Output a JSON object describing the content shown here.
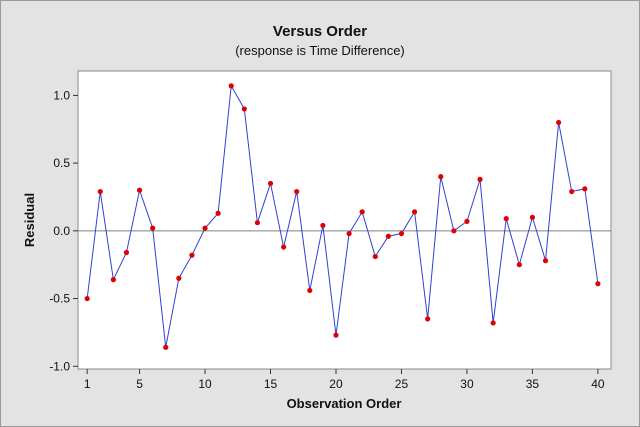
{
  "chart_data": {
    "type": "line",
    "title": "Versus Order",
    "subtitle": "(response is Time Difference)",
    "xlabel": "Observation Order",
    "ylabel": "Residual",
    "xlim": [
      0.3,
      41.0
    ],
    "ylim": [
      -1.02,
      1.18
    ],
    "xticks": [
      1,
      5,
      10,
      15,
      20,
      25,
      30,
      35,
      40
    ],
    "yticks": [
      -1.0,
      -0.5,
      0.0,
      0.5,
      1.0
    ],
    "ytick_labels": [
      "-1.0",
      "-0.5",
      "0.0",
      "0.5",
      "1.0"
    ],
    "reference_line": 0.0,
    "grid": false,
    "colors": {
      "line": "#2f3fd9",
      "marker": "#e00000",
      "reference": "#808080",
      "plot_background": "#ffffff",
      "figure_background": "#e3e3e3"
    },
    "series": [
      {
        "x": [
          1,
          2,
          3,
          4,
          5,
          6,
          7,
          8,
          9,
          10,
          11,
          12,
          13,
          14,
          15,
          16,
          17,
          18,
          19,
          20,
          21,
          22,
          23,
          24,
          25,
          26,
          27,
          28,
          29,
          30,
          31,
          32,
          33,
          34,
          35,
          36,
          37,
          38,
          39,
          40
        ],
        "values": [
          -0.5,
          0.29,
          -0.36,
          -0.16,
          0.3,
          0.02,
          -0.86,
          -0.35,
          -0.18,
          0.02,
          0.13,
          1.07,
          0.9,
          0.06,
          0.35,
          -0.12,
          0.29,
          -0.44,
          0.04,
          -0.77,
          -0.02,
          0.14,
          -0.19,
          -0.04,
          -0.02,
          0.14,
          -0.65,
          0.4,
          0.0,
          0.07,
          0.38,
          -0.68,
          0.09,
          -0.25,
          0.1,
          -0.22,
          0.8,
          0.29,
          0.31,
          -0.39
        ]
      }
    ]
  }
}
